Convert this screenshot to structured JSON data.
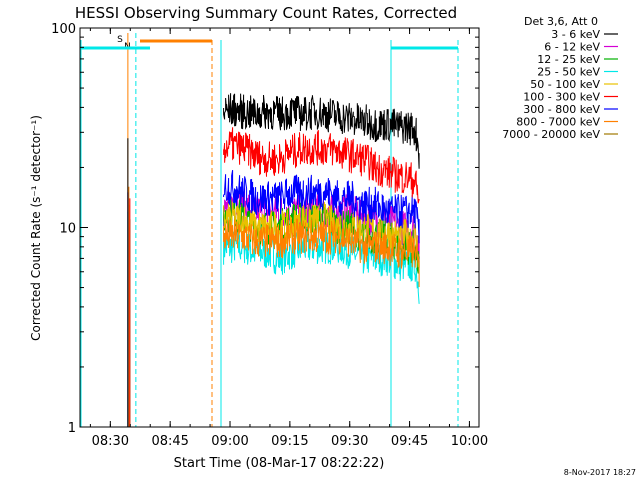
{
  "chart_data": {
    "type": "line",
    "title": "HESSI Observing Summary Count Rates, Corrected",
    "xlabel": "Start Time (08-Mar-17 08:22:22)",
    "ylabel": "Corrected Count Rate (s⁻¹ detector⁻¹)",
    "x_unit": "minutes after 08:22:22",
    "xlim": [
      0,
      100
    ],
    "ylim": [
      1,
      100
    ],
    "y_scale": "log",
    "x_ticks": [
      {
        "value": 7.6,
        "label": "08:30"
      },
      {
        "value": 22.6,
        "label": "08:45"
      },
      {
        "value": 37.6,
        "label": "09:00"
      },
      {
        "value": 52.6,
        "label": "09:15"
      },
      {
        "value": 67.6,
        "label": "09:30"
      },
      {
        "value": 82.6,
        "label": "09:45"
      },
      {
        "value": 97.6,
        "label": "10:00"
      }
    ],
    "y_ticks": [
      {
        "value": 1,
        "label": "1"
      },
      {
        "value": 10,
        "label": "10"
      },
      {
        "value": 100,
        "label": "100"
      }
    ],
    "legend_title": "Det 3,6, Att 0",
    "legend_position": "right",
    "series": [
      {
        "name": "3 - 6 keV",
        "color": "#000000",
        "x": [
          36,
          38,
          41,
          44,
          47,
          50,
          53,
          56,
          59,
          62,
          65,
          68,
          71,
          74,
          77,
          80,
          82,
          84,
          85
        ],
        "y": [
          38,
          39,
          38,
          37,
          38,
          37,
          38,
          37,
          38,
          37,
          36,
          35,
          34,
          33,
          33,
          32,
          32,
          31,
          24
        ]
      },
      {
        "name": "6 - 12 keV",
        "color": "#d400d4",
        "x": [
          36,
          38,
          41,
          44,
          47,
          50,
          53,
          56,
          59,
          62,
          65,
          68,
          71,
          74,
          77,
          80,
          82,
          84,
          85
        ],
        "y": [
          12,
          13,
          13,
          12,
          12,
          12,
          12,
          12,
          12,
          12,
          12,
          12,
          11,
          11,
          11,
          10,
          10,
          10,
          8
        ]
      },
      {
        "name": "12 - 25 keV",
        "color": "#00b000",
        "x": [
          36,
          38,
          41,
          44,
          47,
          50,
          53,
          56,
          59,
          62,
          65,
          68,
          71,
          74,
          77,
          80,
          82,
          84,
          85
        ],
        "y": [
          11,
          12,
          11,
          10,
          10,
          10,
          11,
          11,
          11,
          11,
          10,
          10,
          9,
          9,
          9,
          8,
          8,
          8,
          6
        ]
      },
      {
        "name": "25 - 50 keV",
        "color": "#00e8e8",
        "x": [
          36,
          38,
          41,
          44,
          47,
          50,
          53,
          56,
          59,
          62,
          65,
          68,
          71,
          74,
          77,
          80,
          82,
          84,
          85
        ],
        "y": [
          8,
          8,
          8,
          7.5,
          7.5,
          7,
          7.5,
          8,
          8,
          8,
          8,
          7.5,
          7,
          7,
          7,
          6.5,
          6.5,
          6.5,
          5
        ]
      },
      {
        "name": "50 - 100 keV",
        "color": "#e8c000",
        "x": [
          36,
          38,
          41,
          44,
          47,
          50,
          53,
          56,
          59,
          62,
          65,
          68,
          71,
          74,
          77,
          80,
          82,
          84,
          85
        ],
        "y": [
          11,
          11,
          11,
          10,
          10,
          10,
          10,
          11,
          11,
          11,
          10,
          10,
          10,
          9.5,
          9.5,
          9,
          9,
          9,
          7
        ]
      },
      {
        "name": "100 - 300 keV",
        "color": "#ff0000",
        "x": [
          36,
          38,
          41,
          44,
          47,
          50,
          53,
          56,
          59,
          62,
          65,
          68,
          71,
          74,
          77,
          80,
          82,
          84,
          85
        ],
        "y": [
          25,
          26,
          25,
          23,
          22,
          22,
          24,
          25,
          25,
          25,
          24,
          23,
          22,
          20,
          19,
          18,
          18,
          17,
          13
        ]
      },
      {
        "name": "300 - 800 keV",
        "color": "#0000ff",
        "x": [
          36,
          38,
          41,
          44,
          47,
          50,
          53,
          56,
          59,
          62,
          65,
          68,
          71,
          74,
          77,
          80,
          82,
          84,
          85
        ],
        "y": [
          16,
          16,
          15,
          14,
          14,
          14,
          15,
          15,
          15,
          15,
          14,
          14,
          13,
          13,
          12,
          12,
          12,
          12,
          9
        ]
      },
      {
        "name": "800 - 7000 keV",
        "color": "#ff8000",
        "x": [
          36,
          38,
          41,
          44,
          47,
          50,
          53,
          56,
          59,
          62,
          65,
          68,
          71,
          74,
          77,
          80,
          82,
          84,
          85
        ],
        "y": [
          9,
          9,
          9,
          8.5,
          8.5,
          8.5,
          9,
          9,
          9,
          9,
          9,
          8.5,
          8,
          8,
          8,
          7.5,
          7.5,
          7.5,
          6
        ]
      },
      {
        "name": "7000 - 20000 keV",
        "color": "#a07800",
        "x": [],
        "y": []
      }
    ],
    "markers": [
      {
        "label": "S",
        "color": "#ff8000",
        "x": 12,
        "style": "solid"
      },
      {
        "label": "N",
        "color": "#00e8e8",
        "x": 14,
        "style": "dashed"
      }
    ],
    "footer_date": "8-Nov-2017 18:27"
  }
}
